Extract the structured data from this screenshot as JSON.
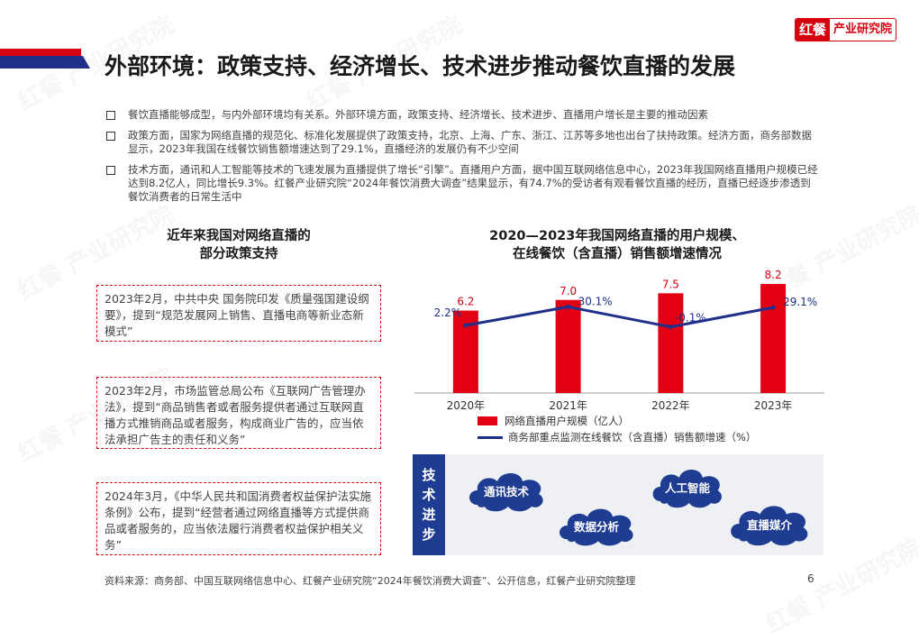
{
  "header": {
    "title": "外部环境：政策支持、经济增长、技术进步推动餐饮直播的发展",
    "logo_red": "红餐",
    "logo_text": "产业研究院"
  },
  "bullets": [
    "餐饮直播能够成型，与内外部环境均有关系。外部环境方面，政策支持、经济增长、技术进步、直播用户增长是主要的推动因素",
    "政策方面，国家为网络直播的规范化、标准化发展提供了政策支持，北京、上海、广东、浙江、江苏等多地也出台了扶持政策。经济方面，商务部数据显示，2023年我国在线餐饮销售额增速达到了29.1%，直播经济的发展仍有不少空间",
    "技术方面，通讯和人工智能等技术的飞速发展为直播提供了增长“引擎”。直播用户方面，据中国互联网络信息中心，2023年我国网络直播用户规模已经达到8.2亿人，同比增长9.3%。红餐产业研究院“2024年餐饮消费大调查”结果显示，有74.7%的受访者有观看餐饮直播的经历，直播已经逐步渗透到餐饮消费者的日常生活中"
  ],
  "policy": {
    "title_line1": "近年来我国对网络直播的",
    "title_line2": "部分政策支持",
    "items": [
      "2023年2月，中共中央 国务院印发《质量强国建设纲要》，提到“规范发展网上销售、直播电商等新业态新模式”",
      "2023年2月，市场监管总局公布《互联网广告管理办法》，提到“商品销售者或者服务提供者通过互联网直播方式推销商品或者服务，构成商业广告的，应当依法承担广告主的责任和义务”",
      "2024年3月，《中华人民共和国消费者权益保护法实施条例》公布，提到“经营者通过网络直播等方式提供商品或者服务的，应当依法履行消费者权益保护相关义务”"
    ]
  },
  "chart_data": {
    "type": "bar",
    "title": "2020—2023年我国网络直播的用户规模、在线餐饮（含直播）销售额增速情况",
    "title_line1": "2020—2023年我国网络直播的用户规模、",
    "title_line2": "在线餐饮（含直播）销售额增速情况",
    "categories": [
      "2020年",
      "2021年",
      "2022年",
      "2023年"
    ],
    "series": [
      {
        "name": "网络直播用户规模（亿人）",
        "type": "bar",
        "color": "#e30012",
        "values": [
          6.2,
          7.0,
          7.5,
          8.2
        ],
        "labels": [
          "6.2",
          "7.0",
          "7.5",
          "8.2"
        ]
      },
      {
        "name": "商务部重点监测在线餐饮（含直播）销售额增速（%）",
        "type": "line",
        "color": "#1f2f8a",
        "values": [
          2.2,
          30.1,
          -0.1,
          29.1
        ],
        "labels": [
          "2.2%",
          "30.1%",
          "-0.1%",
          "29.1%"
        ]
      }
    ],
    "bar_ylim": [
      0,
      16
    ],
    "line_ylim": [
      -10,
      36
    ],
    "grid": false,
    "legend_position": "bottom"
  },
  "tech": {
    "label_chars": [
      "技",
      "术",
      "进",
      "步"
    ],
    "clouds": [
      "通讯技术",
      "人工智能",
      "数据分析",
      "直播媒介"
    ]
  },
  "footer": {
    "source": "资料来源：商务部、中国互联网络信息中心、红餐产业研究院“2024年餐饮消费大调查”、公开信息，红餐产业研究院整理",
    "page": "6"
  },
  "colors": {
    "red": "#d6000f",
    "blue": "#1f2f8a",
    "tech_blue": "#1f3c93"
  }
}
